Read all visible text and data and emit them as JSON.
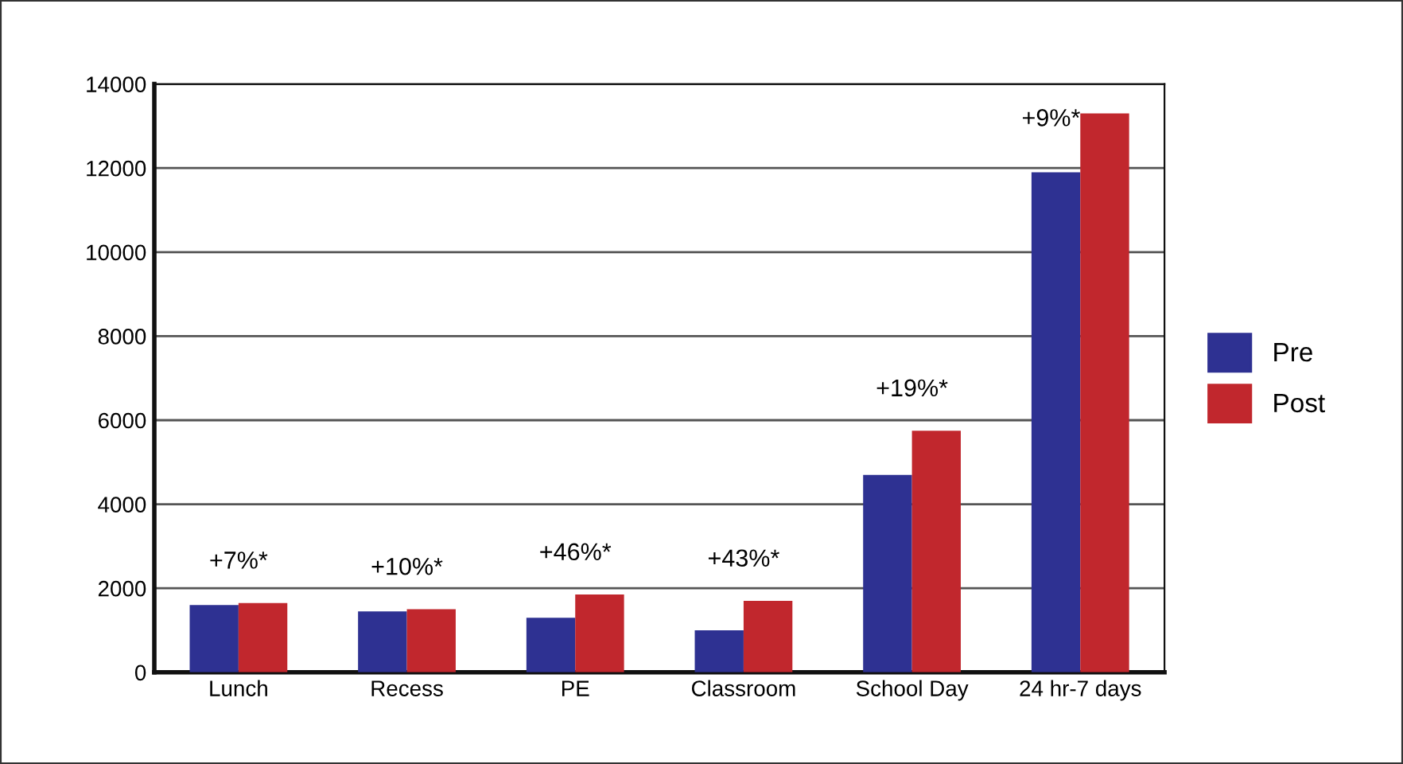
{
  "chart_data": {
    "type": "bar",
    "categories": [
      "Lunch",
      "Recess",
      "PE",
      "Classroom",
      "School Day",
      "24 hr-7 days"
    ],
    "series": [
      {
        "name": "Pre",
        "color": "#2e3192",
        "values": [
          1600,
          1450,
          1300,
          1000,
          4700,
          11900
        ]
      },
      {
        "name": "Post",
        "color": "#c1272d",
        "values": [
          1650,
          1500,
          1850,
          1700,
          5750,
          13300
        ]
      }
    ],
    "ylim": [
      0,
      14000
    ],
    "yticks": [
      0,
      2000,
      4000,
      6000,
      8000,
      10000,
      12000,
      14000
    ],
    "grid": "y",
    "legend": "right",
    "annotations": [
      "+7%*",
      "+10%*",
      "+46%*",
      "+43%*",
      "+19%*",
      "+9%*"
    ]
  }
}
